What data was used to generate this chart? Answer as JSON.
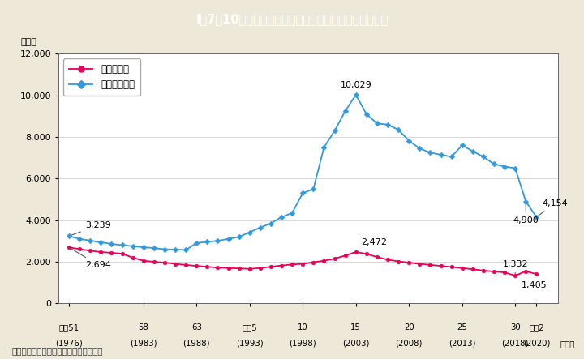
{
  "title": "I－7－10図　強制性交等・強制わいせつ認知件数の推移",
  "title_bg_color": "#4dbfd0",
  "bg_color": "#ede8d8",
  "plot_bg_color": "#ffffff",
  "ylabel": "（件）",
  "years": [
    1976,
    1977,
    1978,
    1979,
    1980,
    1981,
    1982,
    1983,
    1984,
    1985,
    1986,
    1987,
    1988,
    1989,
    1990,
    1991,
    1992,
    1993,
    1994,
    1995,
    1996,
    1997,
    1998,
    1999,
    2000,
    2001,
    2002,
    2003,
    2004,
    2005,
    2006,
    2007,
    2008,
    2009,
    2010,
    2011,
    2012,
    2013,
    2014,
    2015,
    2016,
    2017,
    2018,
    2019,
    2020
  ],
  "kyosei_koui": [
    2694,
    2610,
    2530,
    2470,
    2430,
    2390,
    2200,
    2050,
    2000,
    1960,
    1900,
    1850,
    1800,
    1760,
    1720,
    1700,
    1680,
    1660,
    1700,
    1760,
    1820,
    1870,
    1900,
    1980,
    2050,
    2150,
    2300,
    2472,
    2380,
    2230,
    2100,
    2020,
    1960,
    1900,
    1850,
    1800,
    1750,
    1700,
    1640,
    1580,
    1530,
    1490,
    1332,
    1550,
    1405
  ],
  "kyosei_waisetsu": [
    3239,
    3100,
    3020,
    2940,
    2860,
    2800,
    2750,
    2700,
    2660,
    2600,
    2590,
    2570,
    2900,
    2960,
    3010,
    3100,
    3200,
    3420,
    3650,
    3850,
    4150,
    4350,
    5300,
    5500,
    7500,
    8300,
    9250,
    10029,
    9100,
    8650,
    8600,
    8350,
    7820,
    7450,
    7250,
    7150,
    7050,
    7600,
    7320,
    7050,
    6700,
    6580,
    6500,
    4900,
    4154
  ],
  "line_koui_color": "#e8005a",
  "line_waisetsu_color": "#3399dd",
  "marker_size": 3.5,
  "ylim": [
    0,
    12000
  ],
  "yticks": [
    0,
    2000,
    4000,
    6000,
    8000,
    10000,
    12000
  ],
  "xtick_labels_line1": [
    "昭和51",
    "58",
    "63",
    "平成5",
    "10",
    "15",
    "20",
    "25",
    "30",
    "令和2"
  ],
  "xtick_labels_line2": [
    "(1976)",
    "(1983)",
    "(1988)",
    "(1993)",
    "(1998)",
    "(2003)",
    "(2008)",
    "(2013)",
    "(2018)",
    "(2020)"
  ],
  "xtick_years": [
    1976,
    1983,
    1988,
    1993,
    1998,
    2003,
    2008,
    2013,
    2018,
    2020
  ],
  "legend_labels": [
    "強制性交等",
    "強制わいせつ"
  ],
  "footnote": "（備考）警察庁「犯罪統計」より作成。"
}
